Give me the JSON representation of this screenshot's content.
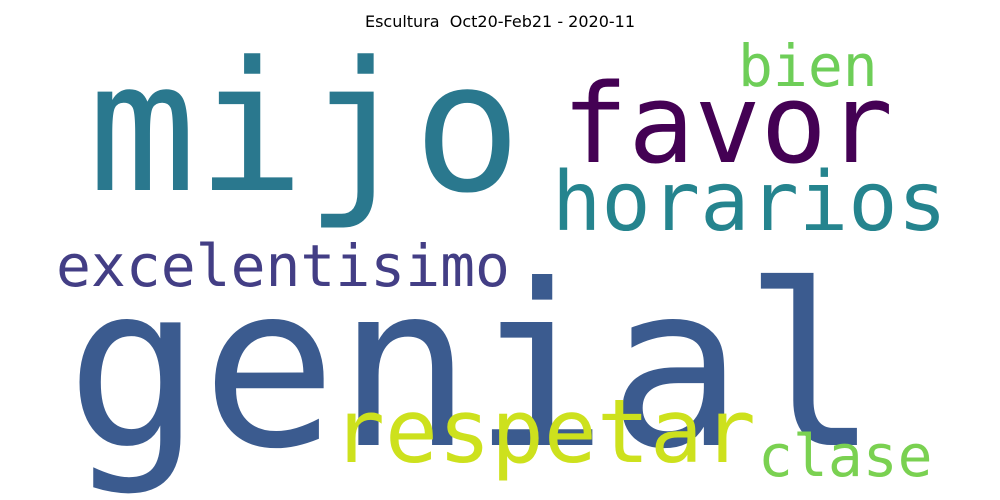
{
  "title": "Escultura  Oct20-Feb21 - 2020-11",
  "words": [
    {
      "text": "mijo",
      "color": "#2a788e"
    },
    {
      "text": "favor",
      "color": "#440154"
    },
    {
      "text": "bien",
      "color": "#6ece58"
    },
    {
      "text": "horarios",
      "color": "#25848e"
    },
    {
      "text": "excelentisimo",
      "color": "#433e85"
    },
    {
      "text": "genial",
      "color": "#3b5b8f"
    },
    {
      "text": "respetar",
      "color": "#cde11d"
    },
    {
      "text": "clase",
      "color": "#7ad151"
    }
  ]
}
